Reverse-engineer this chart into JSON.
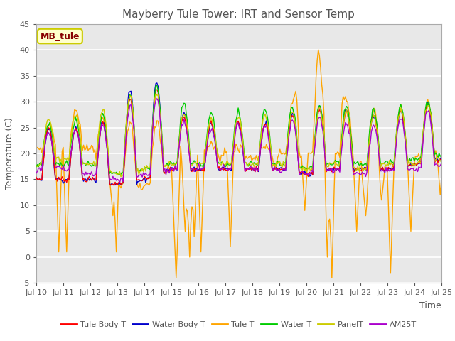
{
  "title": "Mayberry Tule Tower: IRT and Sensor Temp",
  "xlabel": "Time",
  "ylabel": "Temperature (C)",
  "ylim": [
    -5,
    45
  ],
  "yticks": [
    -5,
    0,
    5,
    10,
    15,
    20,
    25,
    30,
    35,
    40,
    45
  ],
  "xtick_labels": [
    "Jul 10",
    "Jul 11",
    "Jul 12",
    "Jul 13",
    "Jul 14",
    "Jul 15",
    "Jul 16",
    "Jul 17",
    "Jul 18",
    "Jul 19",
    "Jul 20",
    "Jul 21",
    "Jul 22",
    "Jul 23",
    "Jul 24",
    "Jul 25"
  ],
  "legend_labels": [
    "Tule Body T",
    "Water Body T",
    "Tule T",
    "Water T",
    "PanelT",
    "AM25T"
  ],
  "legend_colors": [
    "#ff0000",
    "#0000cc",
    "#ffa500",
    "#00cc00",
    "#cccc00",
    "#aa00cc"
  ],
  "annotation_text": "MB_tule",
  "annotation_color": "#880000",
  "annotation_bg": "#ffffcc",
  "annotation_border": "#cccc00",
  "bg_color": "#e8e8e8",
  "grid_color": "#ffffff",
  "title_color": "#555555",
  "tick_color": "#555555",
  "title_fontsize": 11,
  "label_fontsize": 9,
  "tick_fontsize": 8
}
